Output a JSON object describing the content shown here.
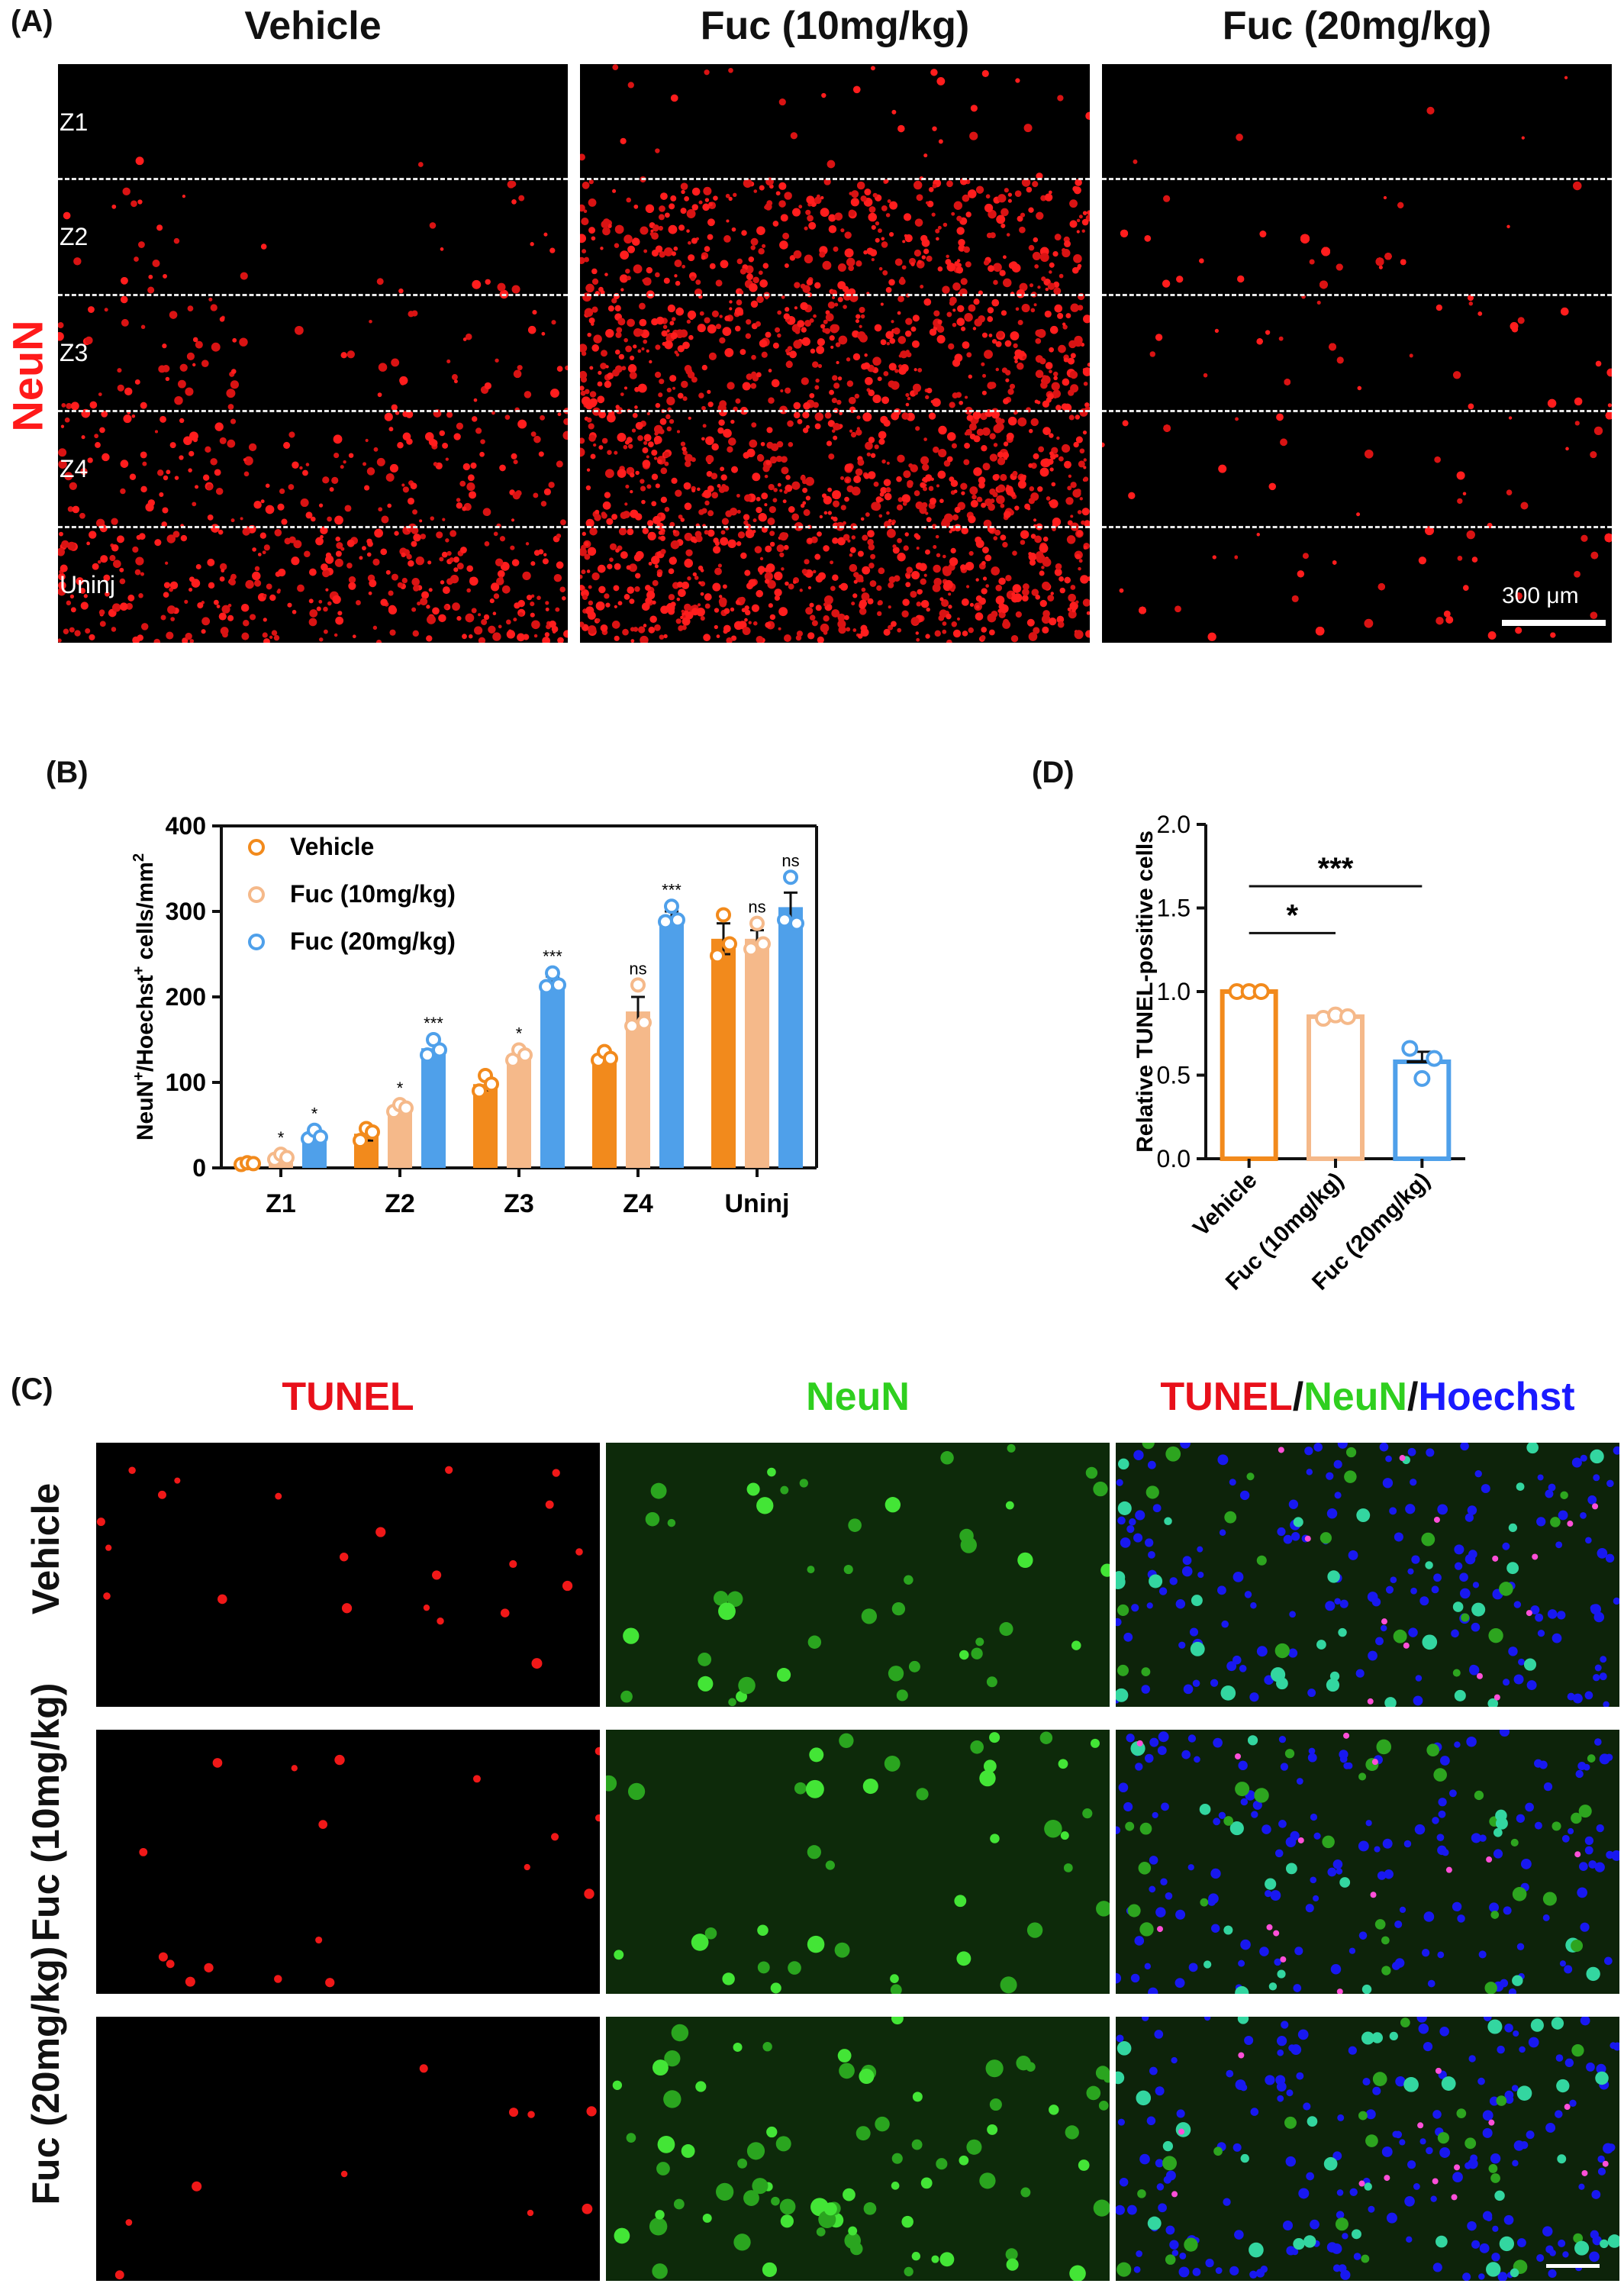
{
  "panel_A": {
    "letter": "(A)",
    "row_label": "NeuN",
    "columns": [
      "Vehicle",
      "Fuc (10mg/kg)",
      "Fuc (20mg/kg)"
    ],
    "zones": [
      "Z1",
      "Z2",
      "Z3",
      "Z4",
      "Uninj"
    ],
    "scale_label": "300 μm"
  },
  "panel_B": {
    "letter": "(B)"
  },
  "panel_C": {
    "letter": "(C)",
    "columns": [
      "TUNEL",
      "NeuN"
    ],
    "merge_label": {
      "part1": "TUNEL",
      "slash1": "/",
      "part2": "NeuN",
      "slash2": "/",
      "part3": "Hoechst"
    },
    "rows": [
      "Vehicle",
      "Fuc (10mg/kg)",
      "Fuc (20mg/kg)"
    ],
    "colors": {
      "tunel": "#e8101a",
      "neun": "#2fcf1f",
      "hoechst": "#1a1aff"
    }
  },
  "panel_D": {
    "letter": "(D)"
  },
  "chart_data": [
    {
      "type": "bar",
      "panel": "B",
      "ylabel": {
        "prefix": "NeuN",
        "sup1": "+",
        "mid": "/Hoechst",
        "sup2": "+",
        "suffix": " cells/mm",
        "sup3": "2"
      },
      "ylim": [
        0,
        400
      ],
      "yticks": [
        "0",
        "100",
        "200",
        "300",
        "400"
      ],
      "categories": [
        "Z1",
        "Z2",
        "Z3",
        "Z4",
        "Uninj"
      ],
      "series": [
        {
          "name": "Vehicle",
          "color": "#f28a1c",
          "values": [
            5,
            40,
            98,
            130,
            268
          ],
          "sem": [
            2,
            8,
            7,
            5,
            18
          ],
          "points": [
            [
              4,
              6,
              5
            ],
            [
              32,
              46,
              42
            ],
            [
              90,
              108,
              98
            ],
            [
              126,
              136,
              128
            ],
            [
              248,
              296,
              262
            ]
          ],
          "sig": [
            "",
            "",
            "",
            "",
            ""
          ]
        },
        {
          "name": "Fuc (10mg/kg)",
          "color": "#f5b98a",
          "values": [
            13,
            70,
            132,
            183,
            268
          ],
          "sem": [
            3,
            4,
            5,
            17,
            10
          ],
          "points": [
            [
              10,
              16,
              12
            ],
            [
              66,
              74,
              70
            ],
            [
              126,
              138,
              132
            ],
            [
              166,
              214,
              170
            ],
            [
              256,
              286,
              262
            ]
          ],
          "sig": [
            "*",
            "*",
            "*",
            "ns",
            "ns"
          ]
        },
        {
          "name": "Fuc (20mg/kg)",
          "color": "#4fa0ea",
          "values": [
            38,
            140,
            218,
            294,
            305
          ],
          "sem": [
            5,
            7,
            6,
            6,
            17
          ],
          "points": [
            [
              34,
              44,
              36
            ],
            [
              132,
              150,
              138
            ],
            [
              212,
              228,
              214
            ],
            [
              288,
              306,
              290
            ],
            [
              290,
              340,
              286
            ]
          ],
          "sig": [
            "*",
            "***",
            "***",
            "***",
            "ns"
          ]
        }
      ],
      "grid": false,
      "legend": "top-left"
    },
    {
      "type": "bar",
      "panel": "D",
      "ylabel": "Relative TUNEL-positive cells",
      "ylim": [
        0,
        2.0
      ],
      "yticks": [
        "0.0",
        "0.5",
        "1.0",
        "1.5",
        "2.0"
      ],
      "categories": [
        "Vehicle",
        "Fuc (10mg/kg)",
        "Fuc (20mg/kg)"
      ],
      "colors": [
        "#f28a1c",
        "#f5b98a",
        "#4fa0ea"
      ],
      "values": [
        1.0,
        0.85,
        0.58
      ],
      "sem": [
        0.0,
        0.01,
        0.06
      ],
      "points": [
        [
          1.0,
          1.0,
          1.0
        ],
        [
          0.84,
          0.86,
          0.85
        ],
        [
          0.66,
          0.48,
          0.6
        ]
      ],
      "comparisons": [
        {
          "from": 0,
          "to": 1,
          "label": "*"
        },
        {
          "from": 0,
          "to": 2,
          "label": "***"
        }
      ],
      "grid": false
    }
  ]
}
